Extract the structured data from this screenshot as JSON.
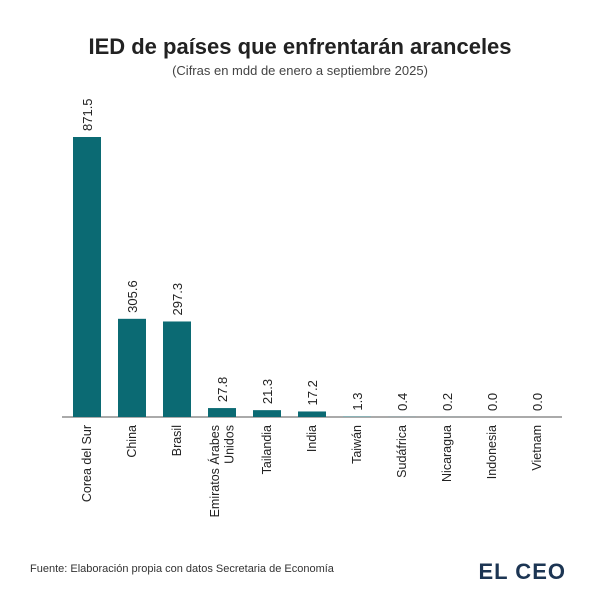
{
  "chart_data": {
    "type": "bar",
    "title": "IED de países que enfrentarán aranceles",
    "subtitle": "(Cifras en mdd de enero a septiembre 2025)",
    "categories": [
      "Corea del Sur",
      "China",
      "Brasil",
      "Emiratos Árabes Unidos",
      "Tailandia",
      "India",
      "Taiwán",
      "Sudáfrica",
      "Nicaragua",
      "Indonesia",
      "Vietnam"
    ],
    "values": [
      871.5,
      305.6,
      297.3,
      27.8,
      21.3,
      17.2,
      1.3,
      0.4,
      0.2,
      0,
      0
    ],
    "value_labels": [
      "871.5",
      "305.6",
      "297.3",
      "27.8",
      "21.3",
      "17.2",
      "1.3",
      "0.4",
      "0.2",
      "0.0",
      "0.0"
    ],
    "color": "#0b6a73",
    "source": "Fuente: Elaboración propia con datos Secretaria de Economía",
    "logo": "EL CEO"
  }
}
